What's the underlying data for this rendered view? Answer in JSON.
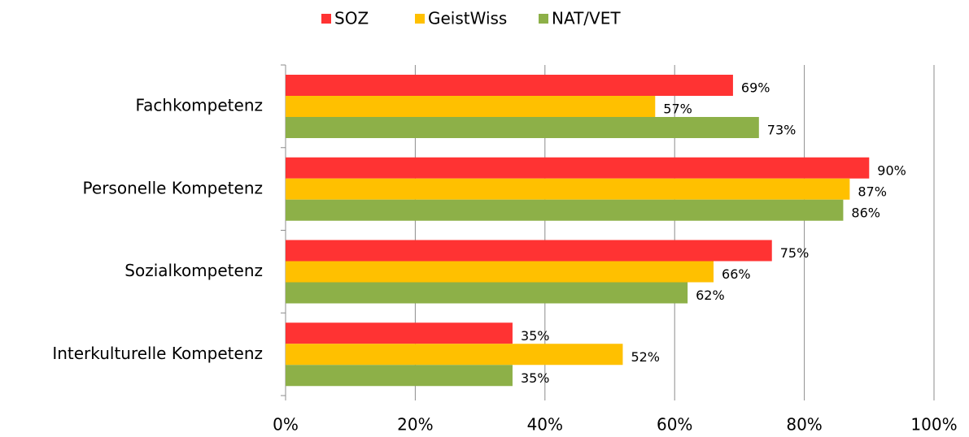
{
  "chart_data": {
    "type": "bar",
    "orientation": "horizontal",
    "categories": [
      "Fachkompetenz",
      "Personelle Kompetenz",
      "Sozialkompetenz",
      "Interkulturelle Kompetenz"
    ],
    "series": [
      {
        "name": "SOZ",
        "color": "#ff3333",
        "values": [
          69,
          90,
          75,
          35
        ],
        "value_labels": [
          "69%",
          "90%",
          "75%",
          "35%"
        ]
      },
      {
        "name": "GeistWiss",
        "color": "#ffc000",
        "values": [
          57,
          87,
          66,
          52
        ],
        "value_labels": [
          "57%",
          "87%",
          "66%",
          "52%"
        ]
      },
      {
        "name": "NAT/VET",
        "color": "#8db048",
        "values": [
          73,
          86,
          62,
          35
        ],
        "value_labels": [
          "73%",
          "86%",
          "62%",
          "35%"
        ]
      }
    ],
    "xlim": [
      0,
      100
    ],
    "xticks": [
      {
        "value": 0,
        "label": "0%"
      },
      {
        "value": 20,
        "label": "20%"
      },
      {
        "value": 40,
        "label": "40%"
      },
      {
        "value": 60,
        "label": "60%"
      },
      {
        "value": 80,
        "label": "80%"
      },
      {
        "value": 100,
        "label": "100%"
      }
    ],
    "grid": true,
    "legend": "top"
  }
}
